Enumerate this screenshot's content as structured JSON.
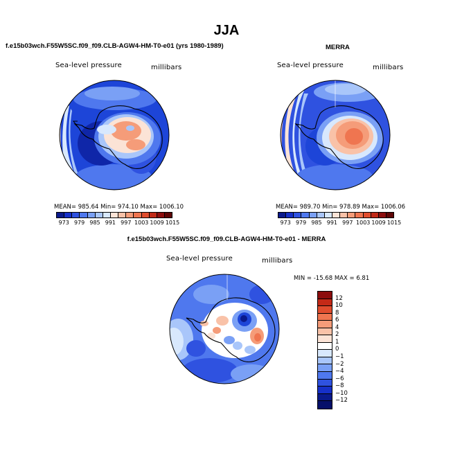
{
  "page_title": "JJA",
  "panels": [
    {
      "title": "f.e15b03wch.F55W5SC.f09_f09.CLB-AGW4-HM-T0-e01 (yrs 1980-1989)",
      "field_label": "Sea-level pressure",
      "units_label": "millibars",
      "stats": "MEAN= 985.64   Min= 974.10   Max= 1006.10"
    },
    {
      "title": "MERRA",
      "field_label": "Sea-level pressure",
      "units_label": "millibars",
      "stats": "MEAN= 989.70   Min= 978.89   Max= 1006.06"
    },
    {
      "title": "f.e15b03wch.F55W5SC.f09_f09.CLB-AGW4-HM-T0-e01 - MERRA",
      "field_label": "Sea-level pressure",
      "units_label": "millibars",
      "stats": "MIN = -15.68  MAX =    6.81"
    }
  ],
  "abs_colorbar": {
    "ticks": [
      "973",
      "979",
      "985",
      "991",
      "997",
      "1003",
      "1009",
      "1015"
    ],
    "colors": [
      "#0a1a8c",
      "#1630c8",
      "#2f52e0",
      "#4f78ee",
      "#7aa0f5",
      "#a9c6fa",
      "#d8e8fd",
      "#fbe3d6",
      "#f9c2a8",
      "#f59c79",
      "#ef7550",
      "#e04d2e",
      "#c02a17",
      "#8c0d0d",
      "#5e0606"
    ]
  },
  "diff_colorbar": {
    "labels": [
      "12",
      "10",
      "8",
      "6",
      "4",
      "2",
      "1",
      "0",
      "−1",
      "−2",
      "−4",
      "−6",
      "−8",
      "−10",
      "−12"
    ],
    "colors": [
      "#8c0d0d",
      "#c42a17",
      "#e04d2e",
      "#ef7550",
      "#f59c79",
      "#f9c2a8",
      "#fbe3d6",
      "#ffffff",
      "#d8e8fd",
      "#a9c6fa",
      "#7aa0f5",
      "#4f78ee",
      "#2f52e0",
      "#1630c8",
      "#0a1a8c",
      "#06106a"
    ]
  }
}
